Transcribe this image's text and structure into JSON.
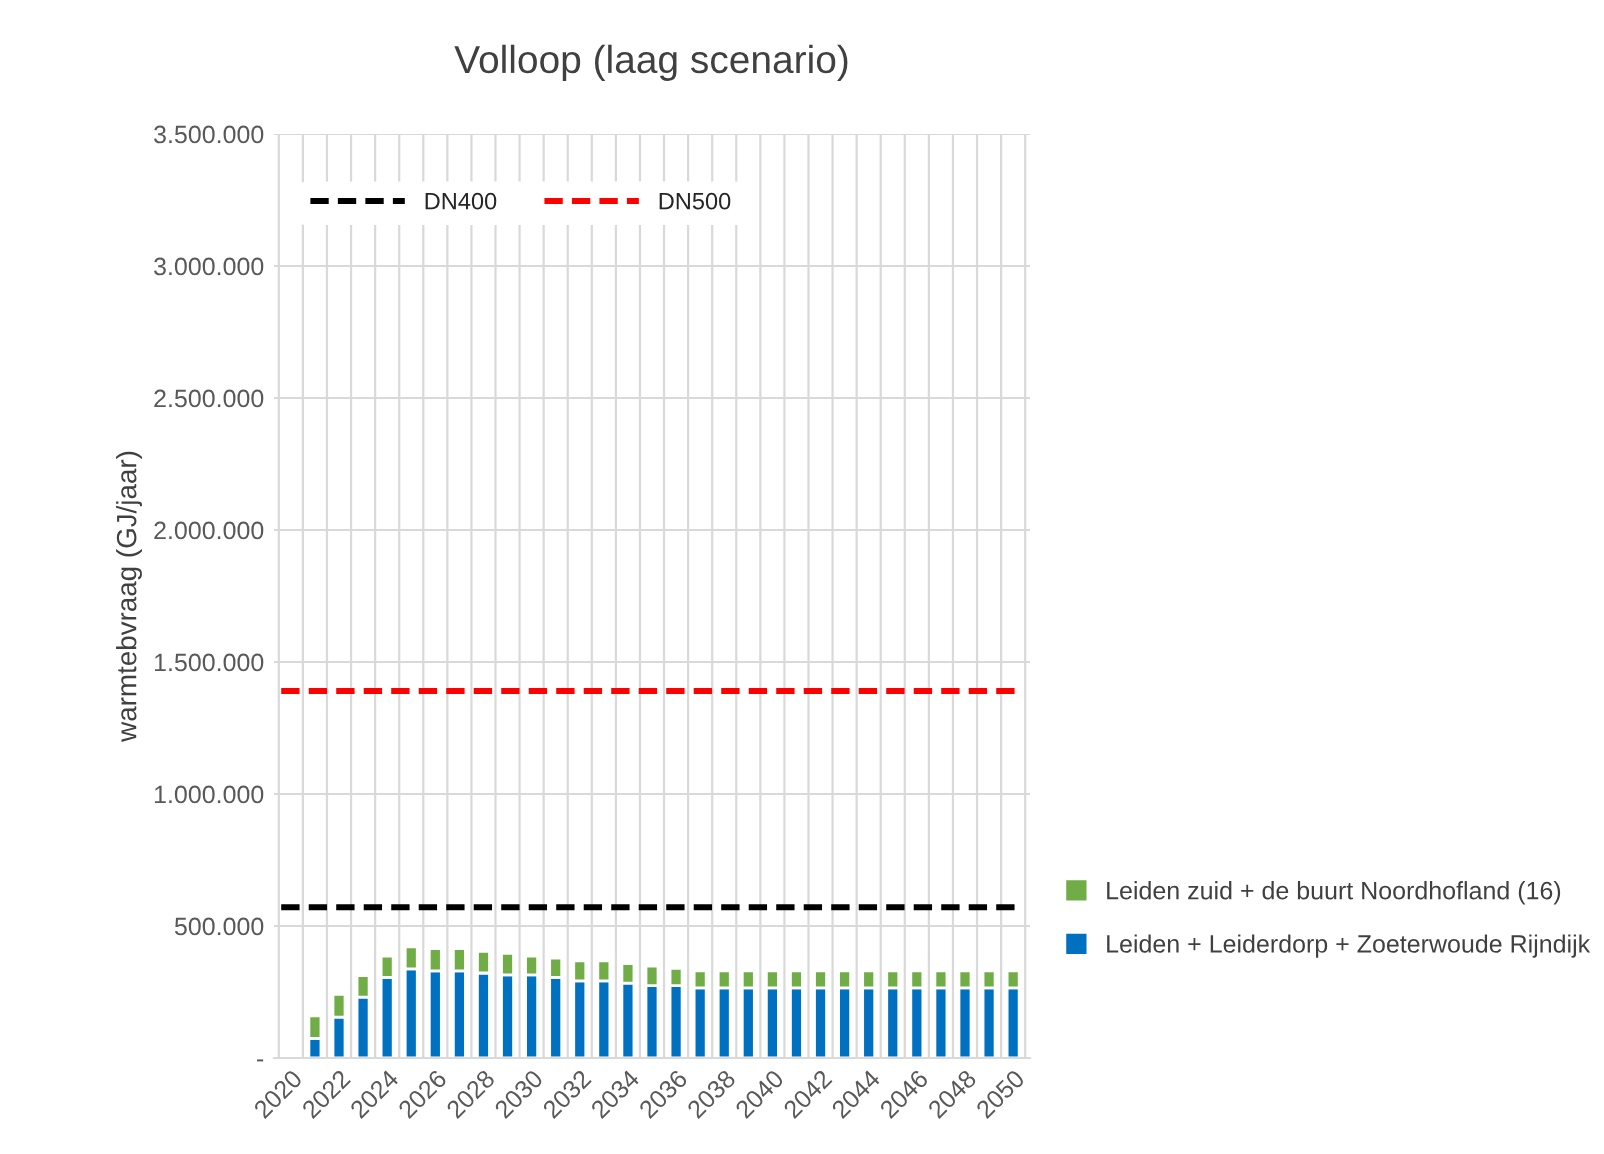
{
  "chart_data": {
    "type": "bar",
    "title": "Volloop (laag scenario)",
    "ylabel": "warmtebvraag (GJ/jaar)",
    "categories": [
      "2020",
      null,
      "2022",
      null,
      "2024",
      null,
      "2026",
      null,
      "2028",
      null,
      "2030",
      null,
      "2032",
      null,
      "2034",
      null,
      "2036",
      null,
      "2038",
      null,
      "2040",
      null,
      "2042",
      null,
      "2044",
      null,
      "2046",
      null,
      "2048",
      null,
      "2050"
    ],
    "stacked": true,
    "series": [
      {
        "name": "Leiden + Leiderdorp + Zoeterwoude Rijndijk",
        "color": "#0070c0",
        "values": [
          null,
          74000,
          155000,
          231000,
          305000,
          338000,
          330000,
          330000,
          322000,
          315000,
          315000,
          305000,
          292000,
          292000,
          284000,
          274000,
          274000,
          266000,
          266000,
          266000,
          266000,
          266000,
          266000,
          266000,
          266000,
          266000,
          266000,
          266000,
          266000,
          266000,
          266000
        ]
      },
      {
        "name": "Leiden zuid + de buurt Noordhofland (16)",
        "color": "#70ad47",
        "values": [
          null,
          86000,
          86000,
          81000,
          81000,
          83000,
          84000,
          84000,
          82000,
          81000,
          71000,
          73000,
          76000,
          76000,
          74000,
          74000,
          66000,
          64000,
          64000,
          64000,
          64000,
          64000,
          64000,
          64000,
          64000,
          64000,
          64000,
          64000,
          64000,
          64000,
          64000
        ]
      }
    ],
    "ref_lines": [
      {
        "axis": "y",
        "value": 571000,
        "label": "DN400",
        "color": "#000000",
        "line_style": "dashed"
      },
      {
        "axis": "y",
        "value": 1390000,
        "label": "DN500",
        "color": "#ff0000",
        "line_style": "dashed"
      }
    ],
    "ylim": [
      0,
      3500000
    ],
    "yticks": [
      {
        "value": 0,
        "label": "-"
      },
      {
        "value": 500000,
        "label": "500.000"
      },
      {
        "value": 1000000,
        "label": "1.000.000"
      },
      {
        "value": 1500000,
        "label": "1.500.000"
      },
      {
        "value": 2000000,
        "label": "2.000.000"
      },
      {
        "value": 2500000,
        "label": "2.500.000"
      },
      {
        "value": 3000000,
        "label": "3.000.000"
      },
      {
        "value": 3500000,
        "label": "3.500.000"
      }
    ],
    "grid": true,
    "legend": "right"
  }
}
